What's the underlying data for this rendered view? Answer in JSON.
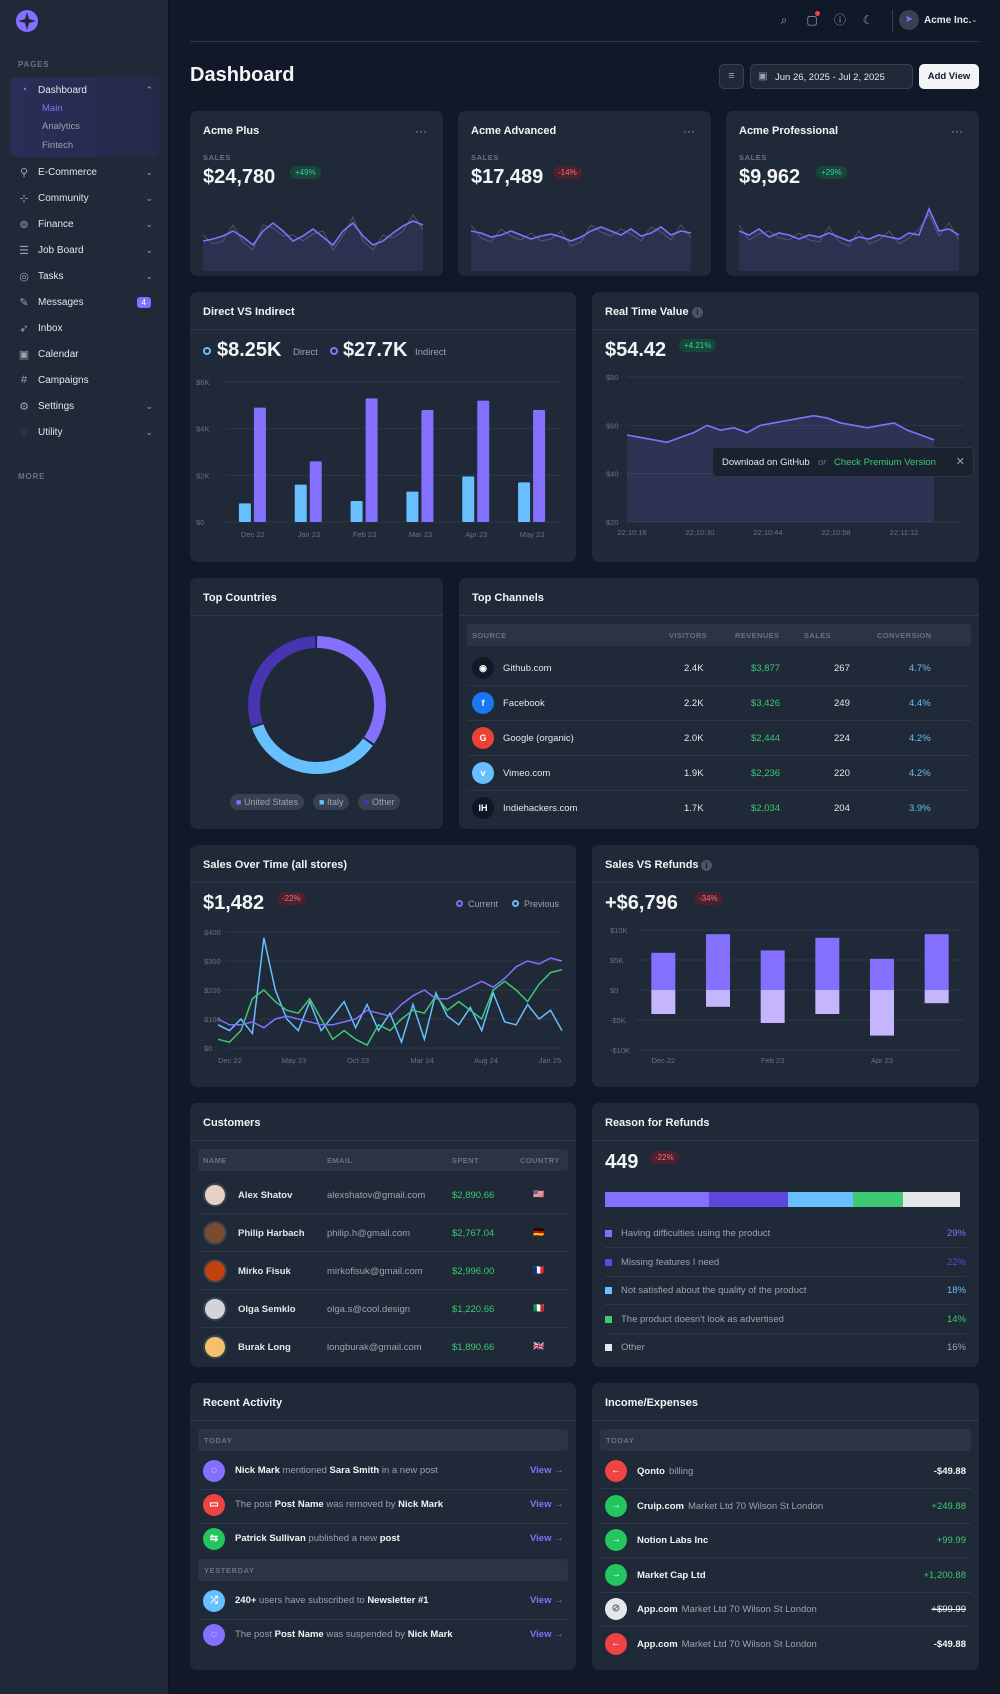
{
  "app": {
    "brand_color": "#8470ff",
    "bg": "#111827",
    "card_bg": "#1f2937"
  },
  "sidebar": {
    "section_pages": "PAGES",
    "section_more": "MORE",
    "items": [
      {
        "label": "Dashboard",
        "icon": "dashboard-icon",
        "expanded": true
      },
      {
        "label": "E-Commerce",
        "icon": "cart-icon"
      },
      {
        "label": "Community",
        "icon": "community-icon"
      },
      {
        "label": "Finance",
        "icon": "finance-icon"
      },
      {
        "label": "Job Board",
        "icon": "jobboard-icon"
      },
      {
        "label": "Tasks",
        "icon": "tasks-icon"
      },
      {
        "label": "Messages",
        "icon": "messages-icon",
        "badge": "4"
      },
      {
        "label": "Inbox",
        "icon": "inbox-icon"
      },
      {
        "label": "Calendar",
        "icon": "calendar-icon"
      },
      {
        "label": "Campaigns",
        "icon": "campaigns-icon"
      },
      {
        "label": "Settings",
        "icon": "settings-icon"
      },
      {
        "label": "Utility",
        "icon": "utility-icon"
      }
    ],
    "dashboard_sub": [
      "Main",
      "Analytics",
      "Fintech"
    ]
  },
  "topbar": {
    "account": "Acme Inc."
  },
  "header": {
    "title": "Dashboard",
    "date_range": "Jun 26, 2025 - Jul 2, 2025",
    "add_view": "Add View"
  },
  "plans": [
    {
      "name": "Acme Plus",
      "label": "SALES",
      "value": "$24,780",
      "delta": "+49%",
      "trend": "up"
    },
    {
      "name": "Acme Advanced",
      "label": "SALES",
      "value": "$17,489",
      "delta": "-14%",
      "trend": "down"
    },
    {
      "name": "Acme Professional",
      "label": "SALES",
      "value": "$9,962",
      "delta": "+29%",
      "trend": "up"
    }
  ],
  "direct": {
    "title": "Direct VS Indirect",
    "direct_value": "$8.25K",
    "direct_label": "Direct",
    "indirect_value": "$27.7K",
    "indirect_label": "Indirect",
    "chart_data": {
      "type": "bar",
      "categories": [
        "Dec 22",
        "Jan 23",
        "Feb 23",
        "Mar 23",
        "Apr 23",
        "May 23"
      ],
      "y_ticks": [
        "$6K",
        "$4K",
        "$2K",
        "$0"
      ],
      "ylim": [
        0,
        6000
      ],
      "series": [
        {
          "name": "Direct",
          "values": [
            800,
            1600,
            900,
            1300,
            1950,
            1700
          ]
        },
        {
          "name": "Indirect",
          "values": [
            4900,
            2600,
            5300,
            4800,
            5200,
            4800
          ]
        }
      ]
    }
  },
  "realtime": {
    "title": "Real Time Value",
    "value": "$54.42",
    "delta": "+4.21%",
    "chart_data": {
      "type": "area",
      "x": [
        "22:10:16",
        "22:10:30",
        "22:10:44",
        "22:10:58",
        "22:11:12"
      ],
      "y_ticks": [
        "$80",
        "$60",
        "$40",
        "$20"
      ],
      "ylim": [
        20,
        80
      ]
    },
    "banner": {
      "text": "Download on GitHub",
      "or": "or",
      "link": "Check Premium Version"
    }
  },
  "countries": {
    "title": "Top Countries",
    "chart_data": {
      "type": "pie",
      "labels": [
        "United States",
        "Italy",
        "Other"
      ],
      "values": [
        35,
        35,
        30
      ],
      "colors": [
        "#8470ff",
        "#67bfff",
        "#4634b1"
      ]
    }
  },
  "channels": {
    "title": "Top Channels",
    "headers": [
      "SOURCE",
      "VISITORS",
      "REVENUES",
      "SALES",
      "CONVERSION"
    ],
    "rows": [
      {
        "source": "Github.com",
        "icon": "github-icon",
        "visitors": "2.4K",
        "revenues": "$3,877",
        "sales": "267",
        "conversion": "4.7%"
      },
      {
        "source": "Facebook",
        "icon": "facebook-icon",
        "visitors": "2.2K",
        "revenues": "$3,426",
        "sales": "249",
        "conversion": "4.4%"
      },
      {
        "source": "Google (organic)",
        "icon": "google-icon",
        "visitors": "2.0K",
        "revenues": "$2,444",
        "sales": "224",
        "conversion": "4.2%"
      },
      {
        "source": "Vimeo.com",
        "icon": "vimeo-icon",
        "visitors": "1.9K",
        "revenues": "$2,236",
        "sales": "220",
        "conversion": "4.2%"
      },
      {
        "source": "Indiehackers.com",
        "icon": "indiehackers-icon",
        "visitors": "1.7K",
        "revenues": "$2,034",
        "sales": "204",
        "conversion": "3.9%"
      }
    ]
  },
  "sales_time": {
    "title": "Sales Over Time (all stores)",
    "value": "$1,482",
    "delta": "-22%",
    "legend_current": "Current",
    "legend_previous": "Previous",
    "chart_data": {
      "type": "line",
      "x_ticks": [
        "Dec 22",
        "May 23",
        "Oct 23",
        "Mar 24",
        "Aug 24",
        "Jan 25"
      ],
      "y_ticks": [
        "$400",
        "$300",
        "$200",
        "$100",
        "$0"
      ],
      "ylim": [
        0,
        400
      ]
    }
  },
  "refunds_chart": {
    "title": "Sales VS Refunds",
    "value": "+$6,796",
    "delta": "-34%",
    "chart_data": {
      "type": "bar",
      "categories": [
        "Dec 22",
        "",
        "Feb 23",
        "",
        "Apr 23",
        ""
      ],
      "x_ticks": [
        "Dec 22",
        "Feb 23",
        "Apr 23"
      ],
      "y_ticks": [
        "$10K",
        "$5K",
        "$0",
        "-$5K",
        "-$10K"
      ],
      "ylim": [
        -10000,
        10000
      ],
      "series": [
        {
          "name": "Sales",
          "values": [
            6200,
            9300,
            6600,
            8700,
            5200,
            9300
          ]
        },
        {
          "name": "Refunds",
          "values": [
            -4000,
            -2800,
            -5500,
            -4000,
            -7600,
            -2200
          ]
        }
      ]
    }
  },
  "customers": {
    "title": "Customers",
    "headers": [
      "NAME",
      "EMAIL",
      "SPENT",
      "COUNTRY"
    ],
    "rows": [
      {
        "name": "Alex Shatov",
        "email": "alexshatov@gmail.com",
        "spent": "$2,890.66",
        "flag": "🇺🇸"
      },
      {
        "name": "Philip Harbach",
        "email": "philip.h@gmail.com",
        "spent": "$2,767.04",
        "flag": "🇩🇪"
      },
      {
        "name": "Mirko Fisuk",
        "email": "mirkofisuk@gmail.com",
        "spent": "$2,996.00",
        "flag": "🇫🇷"
      },
      {
        "name": "Olga Semklo",
        "email": "olga.s@cool.design",
        "spent": "$1,220.66",
        "flag": "🇮🇹"
      },
      {
        "name": "Burak Long",
        "email": "longburak@gmail.com",
        "spent": "$1,890.66",
        "flag": "🇬🇧"
      }
    ]
  },
  "reasons": {
    "title": "Reason for Refunds",
    "value": "449",
    "delta": "-22%",
    "items": [
      {
        "label": "Having difficulties using the product",
        "pct": "29%",
        "color": "#8470ff",
        "share": 29
      },
      {
        "label": "Missing features I need",
        "pct": "22%",
        "color": "#5d47de",
        "share": 22
      },
      {
        "label": "Not satisfied about the quality of the product",
        "pct": "18%",
        "color": "#67bfff",
        "share": 18
      },
      {
        "label": "The product doesn't look as advertised",
        "pct": "14%",
        "color": "#3ec972",
        "share": 14
      },
      {
        "label": "Other",
        "pct": "16%",
        "color": "#e5e7eb",
        "share": 16
      }
    ]
  },
  "activity": {
    "title": "Recent Activity",
    "today": "TODAY",
    "yesterday": "YESTERDAY",
    "view": "View →"
  },
  "income": {
    "title": "Income/Expenses",
    "today": "TODAY",
    "rows": [
      {
        "name": "Qonto",
        "desc": "billing",
        "amount": "-$49.88",
        "dir": "out"
      },
      {
        "name": "Cruip.com",
        "desc": "Market Ltd 70 Wilson St London",
        "amount": "+249.88",
        "dir": "in"
      },
      {
        "name": "Notion Labs Inc",
        "desc": "",
        "amount": "+99.99",
        "dir": "in"
      },
      {
        "name": "Market Cap Ltd",
        "desc": "",
        "amount": "+1,200.88",
        "dir": "in"
      },
      {
        "name": "App.com",
        "desc": "Market Ltd 70 Wilson St London",
        "amount": "+$99.99",
        "dir": "cancel"
      },
      {
        "name": "App.com",
        "desc": "Market Ltd 70 Wilson St London",
        "amount": "-$49.88",
        "dir": "out"
      }
    ]
  }
}
